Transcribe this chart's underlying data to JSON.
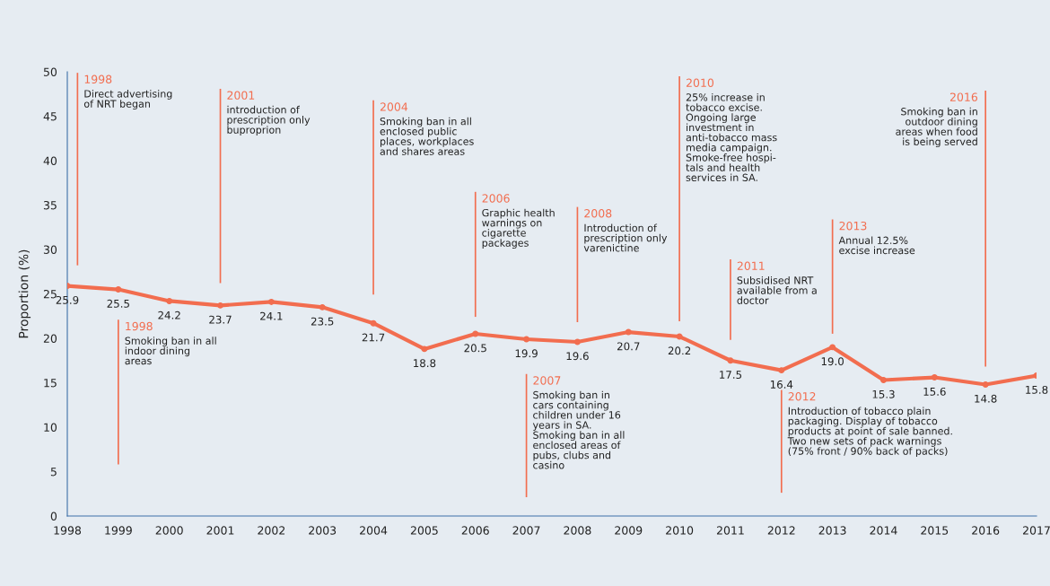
{
  "chart_data": {
    "type": "line",
    "ylabel": "Proportion (%)",
    "x": [
      1998,
      1999,
      2000,
      2001,
      2002,
      2003,
      2004,
      2005,
      2006,
      2007,
      2008,
      2009,
      2010,
      2011,
      2012,
      2013,
      2014,
      2015,
      2016,
      2017
    ],
    "series": [
      {
        "color": "#f26d4f",
        "values": [
          25.9,
          25.5,
          24.2,
          23.7,
          24.1,
          23.5,
          21.7,
          18.8,
          20.5,
          19.9,
          19.6,
          20.7,
          20.2,
          17.5,
          16.4,
          19.0,
          15.3,
          15.6,
          14.8,
          15.8
        ],
        "value_labels": [
          "25.9",
          "25.5",
          "24.2",
          "23.7",
          "24.1",
          "23.5",
          "21.7",
          "18.8",
          "20.5",
          "19.9",
          "19.6",
          "20.7",
          "20.2",
          "17.5",
          "16.4",
          "19.0",
          "15.3",
          "15.6",
          "14.8",
          "15.8"
        ]
      }
    ],
    "xlim": [
      1998,
      2017
    ],
    "xticks": [
      1998,
      1999,
      2000,
      2001,
      2002,
      2003,
      2004,
      2005,
      2006,
      2007,
      2008,
      2009,
      2010,
      2011,
      2012,
      2013,
      2014,
      2015,
      2016,
      2017
    ],
    "ylim": [
      0,
      50
    ],
    "yticks": [
      0,
      5,
      10,
      15,
      20,
      25,
      30,
      35,
      40,
      45,
      50
    ],
    "grid": false,
    "legend": false,
    "marker": "circle",
    "line_style": "solid",
    "annotations": [
      "1998\nDirect advertising\nof NRT began",
      "1998\nSmoking ban in all\nindoor dining\nareas",
      "2001\nintroduction of\nprescription only\nbuproprion",
      "2004\nSmoking ban in all\nenclosed public\nplaces, workplaces\nand shares areas",
      "2006\nGraphic health\nwarnings on\ncigarette\npackages",
      "2007\nSmoking ban in\ncars containing\nchildren under 16\nyears in SA.\nSmoking ban in all\nenclosed areas of\npubs, clubs and\ncasino",
      "2008\nIntroduction of\nprescription only\nvarenictine",
      "2010\n25% increase in\ntobacco excise.\nOngoing large\ninvestment in\nanti-tobacco mass\nmedia campaign.\nSmoke-free hospi-\ntals and health\nservices in SA.",
      "2011\nSubsidised NRT\navailable from a\ndoctor",
      "2012\nIntroduction of tobacco plain\npackaging. Display of tobacco\nproducts at point of sale banned.\nTwo new sets of pack warnings\n(75% front / 90% back of packs)",
      "2013\nAnnual 12.5%\nexcise increase",
      "2016\nSmoking ban in\noutdoor dining\nareas when food\nis being served"
    ]
  }
}
